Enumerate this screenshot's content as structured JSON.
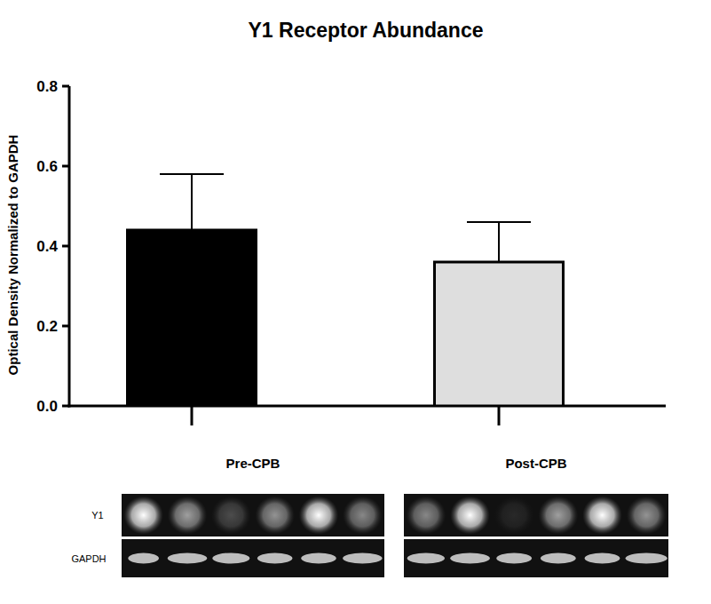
{
  "chart_data": {
    "type": "bar",
    "title": "Y1 Receptor Abundance",
    "y_label": "Optical Density Normalized to GAPDH",
    "categories": [
      "Pre-CPB",
      "Post-CPB"
    ],
    "values": [
      0.44,
      0.36
    ],
    "errors": [
      0.14,
      0.1
    ],
    "colors": [
      "#000000",
      "#dedede"
    ],
    "ylim": [
      0,
      0.8
    ],
    "yticks": [
      {
        "value": 0,
        "label": "0.0"
      },
      0.2,
      0.4,
      0.6,
      0.8
    ],
    "grid": false,
    "blot_rows": [
      "Y1",
      "GAPDH"
    ]
  }
}
